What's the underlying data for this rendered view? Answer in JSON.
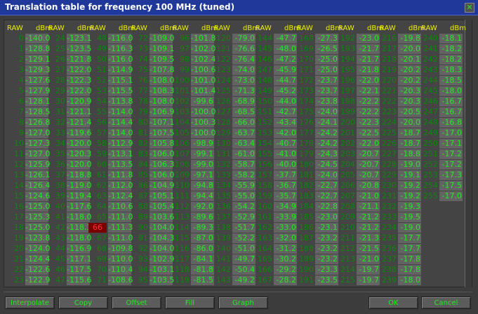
{
  "window": {
    "title": "Translation table for frequency 100 MHz (tuned)",
    "close_icon": "close-x-icon"
  },
  "table": {
    "headers": {
      "raw": "RAW",
      "dbm": "dBm"
    },
    "selected_raw": "66",
    "columns": [
      {
        "raw": [
          "0",
          "1",
          "2",
          "3",
          "4",
          "5",
          "6",
          "7",
          "8",
          "9",
          "10",
          "11",
          "12",
          "13",
          "14",
          "15",
          "16",
          "17",
          "18",
          "19",
          "20",
          "21",
          "22",
          "23"
        ],
        "dbm": [
          "-140.0",
          "-128.8",
          "-129.1",
          "-129.3",
          "-127.6",
          "-127.9",
          "-128.1",
          "-128.5",
          "-126.8",
          "-127.0",
          "-127.3",
          "-127.0",
          "-125.9",
          "-126.1",
          "-126.4",
          "-124.6",
          "-125.0",
          "-125.3",
          "-125.0",
          "-123.8",
          "-124.0",
          "-124.4",
          "-122.6",
          "-122.9"
        ]
      },
      {
        "raw": [
          "24",
          "25",
          "26",
          "27",
          "28",
          "29",
          "30",
          "31",
          "32",
          "33",
          "34",
          "35",
          "36",
          "37",
          "38",
          "39",
          "40",
          "41",
          "42",
          "43",
          "44",
          "45",
          "46",
          "47"
        ],
        "dbm": [
          "-123.1",
          "-123.5",
          "-121.8",
          "-122.0",
          "-122.3",
          "-122.0",
          "-120.9",
          "-121.1",
          "-121.4",
          "-119.6",
          "-120.0",
          "-120.3",
          "-120.0",
          "-118.8",
          "-119.0",
          "-119.4",
          "-117.6",
          "-118.0",
          "-118.3",
          "-118.0",
          "-116.9",
          "-117.1",
          "-117.5",
          "-115.6"
        ]
      },
      {
        "raw": [
          "48",
          "49",
          "50",
          "51",
          "52",
          "53",
          "54",
          "55",
          "56",
          "57",
          "58",
          "59",
          "60",
          "61",
          "62",
          "63",
          "64",
          "65",
          "66",
          "67",
          "68",
          "69",
          "70",
          "71"
        ],
        "dbm": [
          "-116.0",
          "-116.3",
          "-116.0",
          "-114.9",
          "-115.1",
          "-115.5",
          "-113.8",
          "-114.0",
          "-114.4",
          "-114.0",
          "-112.9",
          "-113.1",
          "-113.5",
          "-111.8",
          "-112.0",
          "-112.4",
          "-110.6",
          "-111.0",
          "-111.3",
          "-111.0",
          "-109.8",
          "-110.0",
          "-110.4",
          "-108.6"
        ]
      },
      {
        "raw": [
          "72",
          "73",
          "74",
          "75",
          "76",
          "77",
          "78",
          "79",
          "80",
          "81",
          "82",
          "83",
          "84",
          "85",
          "86",
          "87",
          "88",
          "89",
          "90",
          "91",
          "92",
          "93",
          "94",
          "95"
        ],
        "dbm": [
          "-109.0",
          "-109.1",
          "-109.5",
          "-107.8",
          "-108.0",
          "-108.3",
          "-108.0",
          "-106.9",
          "-107.1",
          "-107.5",
          "-105.8",
          "-106.0",
          "-106.3",
          "-106.0",
          "-104.9",
          "-105.1",
          "-105.4",
          "-103.6",
          "-104.0",
          "-104.3",
          "-104.0",
          "-102.9",
          "-103.1",
          "-103.5"
        ]
      },
      {
        "raw": [
          "96",
          "97",
          "98",
          "99",
          "100",
          "101",
          "102",
          "103",
          "104",
          "105",
          "106",
          "107",
          "108",
          "109",
          "110",
          "111",
          "112",
          "113",
          "114",
          "115",
          "116",
          "117",
          "118",
          "119"
        ],
        "dbm": [
          "-101.8",
          "-102.0",
          "-102.4",
          "-100.6",
          "-101.0",
          "-101.4",
          "-99.6",
          "-100.0",
          "-100.3",
          "-100.0",
          "-98.9",
          "-99.1",
          "-99.0",
          "-97.1",
          "-94.8",
          "-94.4",
          "-92.0",
          "-89.6",
          "-89.3",
          "-87.0",
          "-86.0",
          "-84.1",
          "-81.8",
          "-81.5"
        ]
      },
      {
        "raw": [
          "120",
          "121",
          "122",
          "123",
          "124",
          "125",
          "126",
          "127",
          "128",
          "129",
          "130",
          "131",
          "132",
          "133",
          "134",
          "135",
          "136",
          "137",
          "138",
          "139",
          "140",
          "141",
          "142",
          "143"
        ],
        "dbm": [
          "-79.0",
          "-76.6",
          "-76.4",
          "-74.0",
          "-73.0",
          "-71.3",
          "-68.9",
          "-68.5",
          "-66.0",
          "-63.7",
          "-63.4",
          "-61.0",
          "-58.7",
          "-58.2",
          "-55.9",
          "-55.0",
          "-54.2",
          "-52.9",
          "-51.7",
          "-52.2",
          "-51.0",
          "-49.7",
          "-50.4",
          "-49.2"
        ]
      },
      {
        "raw": [
          "144",
          "145",
          "146",
          "147",
          "148",
          "149",
          "150",
          "151",
          "152",
          "153",
          "154",
          "155",
          "156",
          "157",
          "158",
          "159",
          "160",
          "161",
          "162",
          "163",
          "164",
          "165",
          "166",
          "167"
        ],
        "dbm": [
          "-47.7",
          "-48.0",
          "-47.2",
          "-45.9",
          "-44.7",
          "-45.2",
          "-44.0",
          "-42.7",
          "-43.4",
          "-42.0",
          "-40.7",
          "-41.0",
          "-40.0",
          "-37.7",
          "-36.7",
          "-35.7",
          "-34.9",
          "-33.9",
          "-33.0",
          "-32.0",
          "-31.2",
          "-30.2",
          "-29.2",
          "-28.2"
        ]
      },
      {
        "raw": [
          "168",
          "169",
          "170",
          "171",
          "172",
          "173",
          "174",
          "175",
          "176",
          "177",
          "178",
          "179",
          "180",
          "181",
          "182",
          "183",
          "184",
          "185",
          "186",
          "187",
          "188",
          "189",
          "190",
          "191"
        ],
        "dbm": [
          "-27.3",
          "-26.5",
          "-25.0",
          "-25.0",
          "-23.7",
          "-23.7",
          "-23.8",
          "-24.0",
          "-24.1",
          "-24.2",
          "-24.2",
          "-24.3",
          "-24.5",
          "-24.0",
          "-22.7",
          "-22.7",
          "-22.8",
          "-23.0",
          "-23.1",
          "-23.2",
          "-23.2",
          "-23.2",
          "-23.3",
          "-23.5"
        ]
      },
      {
        "raw": [
          "192",
          "193",
          "194",
          "195",
          "196",
          "197",
          "198",
          "199",
          "200",
          "201",
          "202",
          "203",
          "204",
          "205",
          "206",
          "207",
          "208",
          "209",
          "210",
          "211",
          "212",
          "213",
          "214",
          "215"
        ],
        "dbm": [
          "-23.0",
          "-21.7",
          "-21.7",
          "-21.8",
          "-22.0",
          "-22.1",
          "-22.2",
          "-22.2",
          "-22.3",
          "-22.5",
          "-22.0",
          "-20.7",
          "-20.7",
          "-20.7",
          "-20.8",
          "-21.0",
          "-21.1",
          "-21.2",
          "-21.2",
          "-21.3",
          "-21.5",
          "-21.0",
          "-19.7",
          "-19.7"
        ]
      },
      {
        "raw": [
          "216",
          "217",
          "218",
          "219",
          "220",
          "221",
          "222",
          "223",
          "224",
          "225",
          "226",
          "227",
          "228",
          "229",
          "230",
          "231",
          "232",
          "233",
          "234",
          "235",
          "236",
          "237",
          "238",
          "239"
        ],
        "dbm": [
          "-19.8",
          "-20.0",
          "-20.1",
          "-20.2",
          "-20.2",
          "-20.3",
          "-20.3",
          "-20.5",
          "-20.0",
          "-18.7",
          "-18.7",
          "-18.8",
          "-19.0",
          "-19.1",
          "-19.2",
          "-19.2",
          "-19.3",
          "-19.5",
          "-19.0",
          "-17.7",
          "-17.7",
          "-17.8",
          "-17.8",
          "-18.0"
        ]
      },
      {
        "raw": [
          "240",
          "241",
          "242",
          "243",
          "244",
          "245",
          "246",
          "247",
          "248",
          "249",
          "250",
          "251",
          "252",
          "253",
          "254",
          "255"
        ],
        "dbm": [
          "-18.1",
          "-18.2",
          "-18.2",
          "-18.3",
          "-18.5",
          "-18.0",
          "-16.7",
          "-16.7",
          "-16.8",
          "-17.0",
          "-17.1",
          "-17.2",
          "-17.2",
          "-17.3",
          "-17.5",
          "-17.0"
        ]
      }
    ]
  },
  "buttons": {
    "interpolate": "Interpolate",
    "copy": "Copy",
    "offset": "Offset",
    "fill": "Fill",
    "graph": "Graph",
    "ok": "OK",
    "cancel": "Cancel"
  },
  "colors": {
    "title_bar": "#20389a",
    "value_text": "#22ee22",
    "header_text": "#f0f000",
    "selected_bg": "#7a0000"
  }
}
